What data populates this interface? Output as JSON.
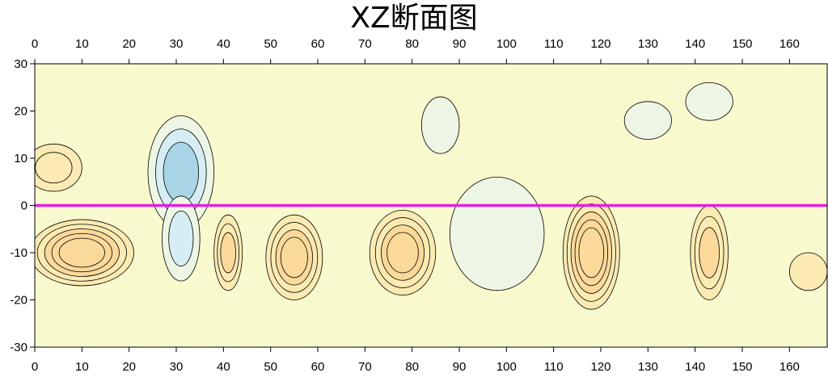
{
  "chart_data": {
    "type": "heatmap",
    "title": "XZ断面图",
    "xlabel": "",
    "ylabel": "",
    "xlim": [
      0,
      168
    ],
    "ylim": [
      -30,
      30
    ],
    "x_ticks": [
      0,
      10,
      20,
      30,
      40,
      50,
      60,
      70,
      80,
      90,
      100,
      110,
      120,
      130,
      140,
      150,
      160
    ],
    "y_ticks": [
      30,
      20,
      10,
      0,
      -10,
      -20,
      -30
    ],
    "x_axis_position": "top and bottom",
    "colormap": [
      "#a8d4e6",
      "#d6edf3",
      "#edf6e4",
      "#fafac8",
      "#fbebb3",
      "#fad99a"
    ],
    "background_color": "#f8f9cc",
    "contour_color": "#000000",
    "reference_line": {
      "z": 0,
      "color": "#e41ee0"
    },
    "features": [
      {
        "kind": "low",
        "x": 31,
        "z": 7,
        "x_radius": 7,
        "z_radius": 12,
        "levels": 3
      },
      {
        "kind": "low",
        "x": 31,
        "z": -7,
        "x_radius": 4,
        "z_radius": 9,
        "levels": 2
      },
      {
        "kind": "low",
        "x": 98,
        "z": -6,
        "x_radius": 10,
        "z_radius": 12,
        "levels": 1
      },
      {
        "kind": "low",
        "x": 86,
        "z": 17,
        "x_radius": 4,
        "z_radius": 6,
        "levels": 1
      },
      {
        "kind": "low",
        "x": 143,
        "z": 22,
        "x_radius": 5,
        "z_radius": 4,
        "levels": 1
      },
      {
        "kind": "low",
        "x": 130,
        "z": 18,
        "x_radius": 5,
        "z_radius": 4,
        "levels": 1
      },
      {
        "kind": "high",
        "x": 10,
        "z": -10,
        "x_radius": 11,
        "z_radius": 7,
        "levels": 5
      },
      {
        "kind": "high",
        "x": 4,
        "z": 8,
        "x_radius": 6,
        "z_radius": 5,
        "levels": 2
      },
      {
        "kind": "high",
        "x": 41,
        "z": -10,
        "x_radius": 3,
        "z_radius": 8,
        "levels": 3
      },
      {
        "kind": "high",
        "x": 55,
        "z": -11,
        "x_radius": 6,
        "z_radius": 9,
        "levels": 4
      },
      {
        "kind": "high",
        "x": 78,
        "z": -10,
        "x_radius": 7,
        "z_radius": 9,
        "levels": 4
      },
      {
        "kind": "high",
        "x": 118,
        "z": -10,
        "x_radius": 6,
        "z_radius": 12,
        "levels": 5
      },
      {
        "kind": "high",
        "x": 143,
        "z": -10,
        "x_radius": 4,
        "z_radius": 10,
        "levels": 3
      },
      {
        "kind": "high",
        "x": 164,
        "z": -14,
        "x_radius": 4,
        "z_radius": 4,
        "levels": 1
      }
    ]
  }
}
